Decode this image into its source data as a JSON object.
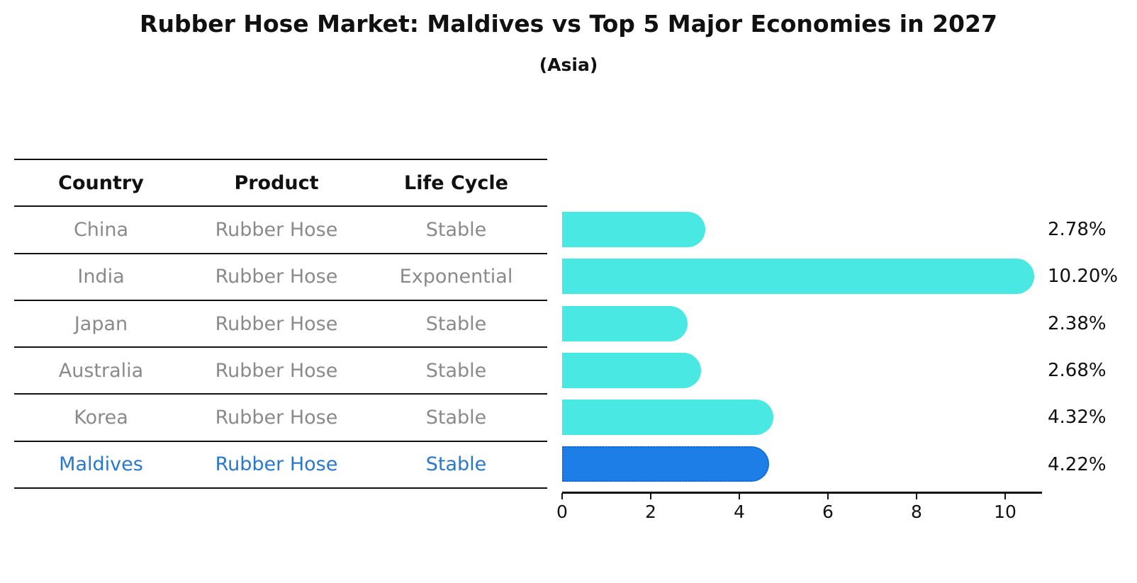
{
  "page": {
    "title": "Rubber Hose Market: Maldives vs Top 5 Major Economies in 2027",
    "subtitle": "(Asia)"
  },
  "table": {
    "headers": [
      "Country",
      "Product",
      "Life Cycle"
    ],
    "rows": [
      {
        "country": "China",
        "product": "Rubber Hose",
        "life_cycle": "Stable",
        "highlight": false
      },
      {
        "country": "India",
        "product": "Rubber Hose",
        "life_cycle": "Exponential",
        "highlight": false
      },
      {
        "country": "Japan",
        "product": "Rubber Hose",
        "life_cycle": "Stable",
        "highlight": false
      },
      {
        "country": "Australia",
        "product": "Rubber Hose",
        "life_cycle": "Stable",
        "highlight": false
      },
      {
        "country": "Korea",
        "product": "Rubber Hose",
        "life_cycle": "Stable",
        "highlight": false
      },
      {
        "country": "Maldives",
        "product": "Rubber Hose",
        "life_cycle": "Stable",
        "highlight": true
      }
    ]
  },
  "chart_data": {
    "type": "bar",
    "orientation": "horizontal",
    "title": "Rubber Hose Market: Maldives vs Top 5 Major Economies in 2027",
    "subtitle": "(Asia)",
    "categories": [
      "China",
      "India",
      "Japan",
      "Australia",
      "Korea",
      "Maldives"
    ],
    "values": [
      2.78,
      10.2,
      2.38,
      2.68,
      4.32,
      4.22
    ],
    "value_labels": [
      "2.78%",
      "10.20%",
      "2.38%",
      "2.68%",
      "4.32%",
      "4.22%"
    ],
    "x_ticks": [
      0,
      2,
      4,
      6,
      8,
      10
    ],
    "xlim": [
      0,
      10.8
    ],
    "grid": false,
    "legend": null,
    "highlight_index": 5,
    "bar_color": "#4AE8E2",
    "highlight_bar_color": "#1E7EE8",
    "highlight_border_color": "#1464D2",
    "highlight_text_color": "#2878CB"
  }
}
